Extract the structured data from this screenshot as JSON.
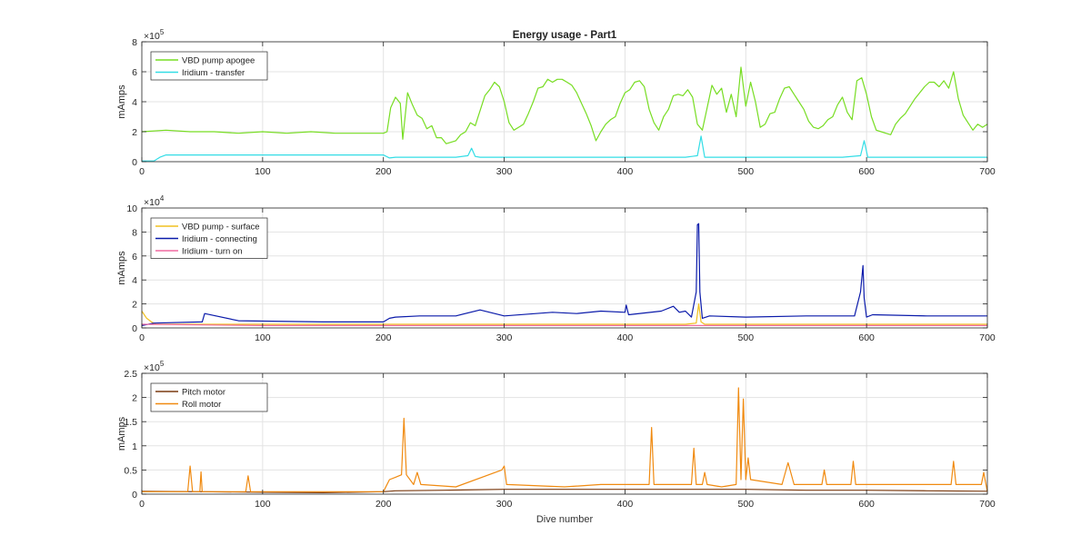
{
  "figure": {
    "title": "Energy usage - Part1",
    "xlabel": "Dive number"
  },
  "chart_data": [
    {
      "type": "line",
      "ylabel": "mAmps",
      "exponent_base": "×10",
      "exponent_power": "5",
      "xlim": [
        0,
        700
      ],
      "ylim": [
        0,
        8
      ],
      "xticks": [
        0,
        100,
        200,
        300,
        400,
        500,
        600,
        700
      ],
      "yticks": [
        0,
        2,
        4,
        6,
        8
      ],
      "grid": true,
      "legend": "top-left",
      "series": [
        {
          "name": "VBD pump apogee",
          "color": "#77dd22",
          "x": [
            0,
            20,
            40,
            60,
            80,
            100,
            120,
            140,
            160,
            180,
            200,
            203,
            206,
            210,
            214,
            216,
            220,
            224,
            228,
            232,
            236,
            240,
            244,
            248,
            252,
            256,
            260,
            264,
            268,
            272,
            276,
            280,
            284,
            288,
            292,
            296,
            300,
            304,
            308,
            312,
            316,
            320,
            324,
            328,
            332,
            336,
            340,
            344,
            348,
            352,
            356,
            360,
            364,
            368,
            372,
            376,
            380,
            384,
            388,
            392,
            396,
            400,
            404,
            408,
            412,
            416,
            420,
            424,
            428,
            432,
            436,
            440,
            444,
            448,
            452,
            456,
            460,
            464,
            468,
            472,
            476,
            480,
            484,
            488,
            492,
            496,
            500,
            504,
            508,
            512,
            516,
            520,
            524,
            528,
            532,
            536,
            540,
            544,
            548,
            552,
            556,
            560,
            564,
            568,
            572,
            576,
            580,
            584,
            588,
            592,
            596,
            600,
            604,
            608,
            612,
            616,
            620,
            624,
            628,
            632,
            636,
            640,
            644,
            648,
            652,
            656,
            660,
            664,
            668,
            672,
            676,
            680,
            684,
            688,
            692,
            696,
            700
          ],
          "values": [
            2.0,
            2.1,
            2.0,
            2.0,
            1.9,
            2.0,
            1.9,
            2.0,
            1.9,
            1.9,
            1.9,
            2.0,
            3.6,
            4.3,
            3.9,
            1.5,
            4.6,
            3.8,
            3.1,
            2.9,
            2.2,
            2.4,
            1.6,
            1.6,
            1.2,
            1.3,
            1.4,
            1.8,
            2.0,
            2.6,
            2.4,
            3.4,
            4.4,
            4.8,
            5.3,
            5.0,
            4.0,
            2.6,
            2.1,
            2.3,
            2.5,
            3.2,
            4.0,
            4.9,
            5.0,
            5.5,
            5.3,
            5.5,
            5.5,
            5.3,
            5.1,
            4.6,
            3.9,
            3.2,
            2.4,
            1.4,
            2.0,
            2.5,
            2.8,
            3.0,
            3.9,
            4.6,
            4.8,
            5.3,
            5.4,
            5.0,
            3.5,
            2.6,
            2.1,
            3.0,
            3.5,
            4.4,
            4.5,
            4.4,
            4.8,
            4.3,
            2.5,
            2.1,
            3.6,
            5.1,
            4.5,
            4.9,
            3.3,
            4.5,
            3.0,
            6.3,
            3.7,
            5.3,
            4.0,
            2.3,
            2.5,
            3.2,
            3.3,
            4.2,
            4.9,
            5.0,
            4.5,
            4.0,
            3.5,
            2.7,
            2.3,
            2.2,
            2.4,
            2.8,
            3.0,
            3.8,
            4.3,
            3.3,
            2.8,
            5.4,
            5.6,
            4.5,
            3.0,
            2.1,
            2.0,
            1.9,
            1.8,
            2.5,
            2.9,
            3.2,
            3.7,
            4.2,
            4.6,
            5.0,
            5.3,
            5.3,
            5.0,
            5.4,
            4.9,
            6.0,
            4.2,
            3.1,
            2.6,
            2.1,
            2.5,
            2.3,
            2.5
          ]
        },
        {
          "name": "Iridium - transfer",
          "color": "#33dde6",
          "x": [
            0,
            10,
            15,
            20,
            200,
            205,
            210,
            240,
            260,
            270,
            273,
            276,
            280,
            300,
            350,
            400,
            450,
            460,
            463,
            466,
            470,
            500,
            550,
            580,
            595,
            598,
            601,
            610,
            650,
            700
          ],
          "values": [
            0.05,
            0.05,
            0.3,
            0.45,
            0.45,
            0.25,
            0.3,
            0.3,
            0.3,
            0.4,
            0.9,
            0.35,
            0.3,
            0.3,
            0.3,
            0.3,
            0.3,
            0.4,
            1.7,
            0.3,
            0.3,
            0.3,
            0.3,
            0.3,
            0.4,
            1.4,
            0.3,
            0.3,
            0.3,
            0.3
          ]
        }
      ]
    },
    {
      "type": "line",
      "ylabel": "mAmps",
      "exponent_base": "×10",
      "exponent_power": "4",
      "xlim": [
        0,
        700
      ],
      "ylim": [
        0,
        10
      ],
      "xticks": [
        0,
        100,
        200,
        300,
        400,
        500,
        600,
        700
      ],
      "yticks": [
        0,
        2,
        4,
        6,
        8,
        10
      ],
      "grid": true,
      "legend": "top-left",
      "series": [
        {
          "name": "VBD pump - surface",
          "color": "#f0c020",
          "x": [
            0,
            4,
            8,
            12,
            20,
            100,
            200,
            300,
            400,
            450,
            459,
            461,
            463,
            466,
            500,
            600,
            700
          ],
          "values": [
            1.4,
            0.8,
            0.5,
            0.3,
            0.3,
            0.3,
            0.3,
            0.3,
            0.3,
            0.3,
            0.4,
            2.0,
            0.5,
            0.3,
            0.3,
            0.3,
            0.3
          ]
        },
        {
          "name": "Iridium - connecting",
          "color": "#0a1aaa",
          "x": [
            0,
            10,
            50,
            52,
            80,
            150,
            200,
            205,
            210,
            230,
            260,
            280,
            300,
            340,
            360,
            380,
            400,
            401,
            403,
            430,
            440,
            445,
            450,
            455,
            459,
            460,
            461,
            462,
            464,
            470,
            500,
            550,
            590,
            595,
            597,
            598,
            600,
            605,
            650,
            700
          ],
          "values": [
            0.2,
            0.4,
            0.5,
            1.2,
            0.6,
            0.5,
            0.5,
            0.8,
            0.9,
            1.0,
            1.0,
            1.5,
            1.0,
            1.3,
            1.2,
            1.4,
            1.3,
            1.9,
            1.1,
            1.4,
            1.8,
            1.3,
            1.4,
            0.9,
            3.0,
            8.6,
            8.7,
            3.0,
            0.8,
            1.0,
            0.9,
            1.0,
            1.0,
            3.0,
            5.2,
            2.5,
            0.9,
            1.1,
            1.0,
            1.0
          ]
        },
        {
          "name": "Iridium - turn on",
          "color": "#f06aa0",
          "x": [
            0,
            100,
            200,
            300,
            400,
            500,
            600,
            700
          ],
          "values": [
            0.3,
            0.2,
            0.2,
            0.2,
            0.2,
            0.2,
            0.2,
            0.2
          ]
        }
      ]
    },
    {
      "type": "line",
      "ylabel": "mAmps",
      "exponent_base": "×10",
      "exponent_power": "5",
      "xlim": [
        0,
        700
      ],
      "ylim": [
        0,
        2.5
      ],
      "xticks": [
        0,
        100,
        200,
        300,
        400,
        500,
        600,
        700
      ],
      "yticks": [
        0,
        0.5,
        1,
        1.5,
        2,
        2.5
      ],
      "grid": true,
      "legend": "top-left",
      "series": [
        {
          "name": "Pitch motor",
          "color": "#7a3a10",
          "x": [
            0,
            50,
            100,
            150,
            200,
            210,
            250,
            300,
            350,
            400,
            450,
            500,
            550,
            600,
            650,
            700
          ],
          "values": [
            0.06,
            0.05,
            0.04,
            0.03,
            0.05,
            0.07,
            0.08,
            0.1,
            0.1,
            0.1,
            0.1,
            0.1,
            0.08,
            0.08,
            0.07,
            0.06
          ]
        },
        {
          "name": "Roll motor",
          "color": "#f08a10",
          "x": [
            0,
            38,
            40,
            42,
            48,
            49,
            50,
            86,
            88,
            90,
            200,
            205,
            210,
            215,
            217,
            219,
            225,
            228,
            231,
            260,
            298,
            300,
            302,
            350,
            380,
            400,
            420,
            422,
            424,
            450,
            455,
            457,
            459,
            464,
            466,
            468,
            480,
            492,
            494,
            496,
            498,
            500,
            502,
            504,
            530,
            535,
            540,
            563,
            565,
            567,
            587,
            589,
            591,
            600,
            640,
            662,
            670,
            672,
            674,
            690,
            695,
            697,
            700
          ],
          "values": [
            0.05,
            0.05,
            0.58,
            0.05,
            0.05,
            0.46,
            0.05,
            0.05,
            0.38,
            0.05,
            0.05,
            0.3,
            0.35,
            0.4,
            1.57,
            0.4,
            0.2,
            0.45,
            0.2,
            0.15,
            0.5,
            0.58,
            0.2,
            0.15,
            0.2,
            0.2,
            0.2,
            1.38,
            0.2,
            0.2,
            0.2,
            0.95,
            0.2,
            0.2,
            0.45,
            0.2,
            0.15,
            0.2,
            2.2,
            0.3,
            1.97,
            0.3,
            0.75,
            0.3,
            0.2,
            0.65,
            0.2,
            0.2,
            0.5,
            0.2,
            0.2,
            0.68,
            0.2,
            0.2,
            0.2,
            0.2,
            0.2,
            0.68,
            0.2,
            0.2,
            0.2,
            0.45,
            0.05
          ]
        }
      ]
    }
  ]
}
